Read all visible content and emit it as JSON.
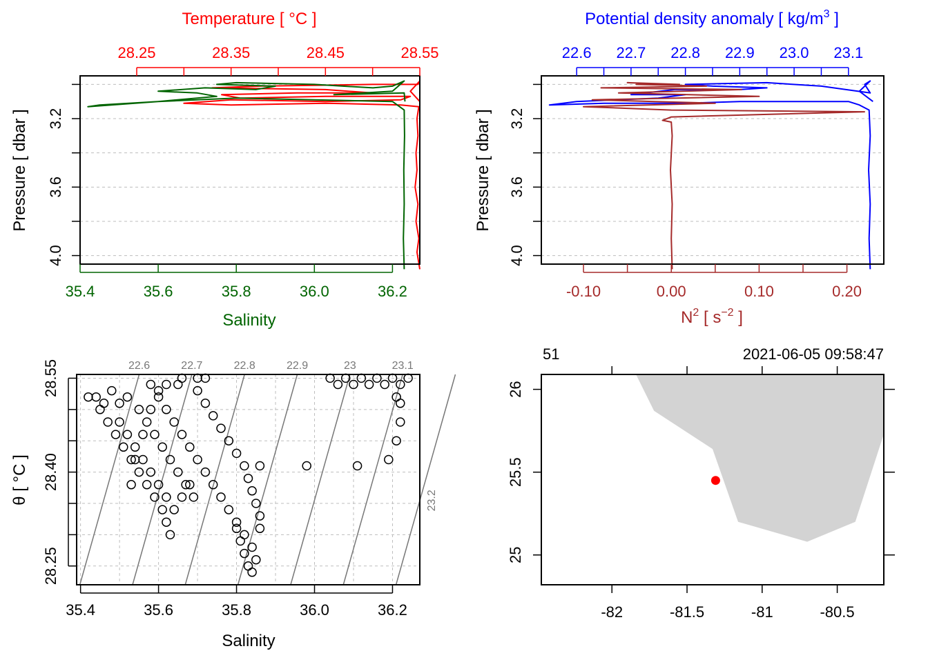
{
  "colors": {
    "temperature": "#ff0000",
    "salinity": "#006400",
    "density": "#0000ff",
    "n2": "#a52a2a",
    "land": "#d3d3d3",
    "station": "#ff0000",
    "isopycnal": "#777777"
  },
  "panel_ts_profile": {
    "top_axis_title": "Temperature [ °C ]",
    "bottom_axis_title": "Salinity",
    "left_axis_title": "Pressure [ dbar ]"
  },
  "panel_density_profile": {
    "top_axis_title": "Potential density anomaly [ kg/m",
    "top_axis_title_sup": "3",
    "top_axis_title_end": " ]",
    "bottom_axis_title": "N",
    "bottom_axis_title_sup": "2",
    "bottom_axis_title_mid": " [ s",
    "bottom_axis_title_sup2": "−2",
    "bottom_axis_title_end": " ]",
    "left_axis_title": "Pressure [ dbar ]"
  },
  "panel_ts_diagram": {
    "x_axis_title": "Salinity",
    "y_axis_title": "θ [ °C ]"
  },
  "panel_map": {
    "station_label": "51",
    "datetime": "2021-06-05 09:58:47"
  },
  "chart_data": [
    {
      "type": "line",
      "name": "ts-profile",
      "ylim": [
        4.05,
        2.95
      ],
      "yticks": [
        "3.2",
        "3.6",
        "4.0"
      ],
      "x_bottom": {
        "label": "Salinity",
        "ticks": [
          "35.4",
          "35.6",
          "35.8",
          "36.0",
          "36.2"
        ],
        "lim": [
          35.4,
          36.27
        ]
      },
      "x_top": {
        "label": "Temperature [ °C ]",
        "ticks": [
          "28.25",
          "28.35",
          "28.45",
          "28.55"
        ],
        "lim": [
          28.19,
          28.55
        ]
      },
      "grid": true,
      "series": [
        {
          "name": "Temperature",
          "axis": "x_top",
          "points": [
            [
              28.55,
              4.08
            ],
            [
              28.547,
              3.98
            ],
            [
              28.549,
              3.9
            ],
            [
              28.546,
              3.8
            ],
            [
              28.548,
              3.7
            ],
            [
              28.545,
              3.6
            ],
            [
              28.547,
              3.5
            ],
            [
              28.546,
              3.4
            ],
            [
              28.548,
              3.3
            ],
            [
              28.547,
              3.2
            ],
            [
              28.549,
              3.13
            ],
            [
              28.53,
              3.12
            ],
            [
              28.45,
              3.11
            ],
            [
              28.35,
              3.12
            ],
            [
              28.3,
              3.11
            ],
            [
              28.35,
              3.09
            ],
            [
              28.45,
              3.1
            ],
            [
              28.53,
              3.09
            ],
            [
              28.54,
              3.07
            ],
            [
              28.45,
              3.07
            ],
            [
              28.36,
              3.08
            ],
            [
              28.34,
              3.06
            ],
            [
              28.42,
              3.05
            ],
            [
              28.5,
              3.05
            ],
            [
              28.45,
              3.03
            ],
            [
              28.33,
              3.02
            ],
            [
              28.38,
              3.01
            ],
            [
              28.5,
              3.0
            ],
            [
              28.548,
              3.0
            ],
            [
              28.55,
              2.98
            ],
            [
              28.54,
              3.04
            ],
            [
              28.55,
              3.1
            ]
          ]
        },
        {
          "name": "Salinity",
          "axis": "x_bottom",
          "points": [
            [
              36.23,
              4.08
            ],
            [
              36.228,
              3.9
            ],
            [
              36.23,
              3.7
            ],
            [
              36.229,
              3.5
            ],
            [
              36.231,
              3.3
            ],
            [
              36.23,
              3.15
            ],
            [
              36.2,
              3.1
            ],
            [
              36.0,
              3.09
            ],
            [
              35.8,
              3.08
            ],
            [
              35.6,
              3.1
            ],
            [
              35.45,
              3.12
            ],
            [
              35.42,
              3.13
            ],
            [
              35.6,
              3.1
            ],
            [
              35.75,
              3.07
            ],
            [
              35.7,
              3.05
            ],
            [
              35.6,
              3.04
            ],
            [
              35.72,
              3.02
            ],
            [
              35.85,
              3.03
            ],
            [
              35.9,
              3.01
            ],
            [
              35.75,
              3.0
            ],
            [
              35.8,
              2.99
            ],
            [
              36.0,
              3.0
            ],
            [
              36.15,
              3.02
            ],
            [
              36.2,
              3.01
            ],
            [
              36.23,
              2.98
            ],
            [
              36.2,
              3.04
            ],
            [
              36.05,
              3.06
            ],
            [
              36.23,
              3.05
            ],
            [
              36.232,
              3.1
            ]
          ]
        }
      ]
    },
    {
      "type": "line",
      "name": "density-profile",
      "ylim": [
        4.05,
        2.95
      ],
      "yticks": [
        "3.2",
        "3.6",
        "4.0"
      ],
      "x_top": {
        "label": "Potential density anomaly [ kg/m3 ]",
        "ticks": [
          "22.6",
          "22.7",
          "22.8",
          "22.9",
          "23.0",
          "23.1"
        ],
        "lim": [
          22.535,
          23.165
        ]
      },
      "x_bottom": {
        "label": "N2 [ s−2 ]",
        "ticks": [
          "-0.10",
          "0.00",
          "0.10",
          "0.20"
        ],
        "lim": [
          -0.148,
          0.242
        ]
      },
      "grid": true,
      "series": [
        {
          "name": "Potential density anomaly",
          "axis": "x_top",
          "points": [
            [
              23.14,
              4.08
            ],
            [
              23.138,
              3.9
            ],
            [
              23.14,
              3.7
            ],
            [
              23.137,
              3.5
            ],
            [
              23.14,
              3.3
            ],
            [
              23.138,
              3.15
            ],
            [
              23.12,
              3.12
            ],
            [
              23.1,
              3.1
            ],
            [
              22.9,
              3.1
            ],
            [
              22.8,
              3.11
            ],
            [
              22.65,
              3.11
            ],
            [
              22.55,
              3.12
            ],
            [
              22.6,
              3.1
            ],
            [
              22.75,
              3.08
            ],
            [
              22.8,
              3.06
            ],
            [
              22.7,
              3.06
            ],
            [
              22.78,
              3.03
            ],
            [
              22.9,
              3.03
            ],
            [
              22.95,
              3.02
            ],
            [
              22.85,
              3.01
            ],
            [
              22.8,
              3.0
            ],
            [
              22.95,
              2.99
            ],
            [
              23.05,
              3.01
            ],
            [
              23.14,
              3.05
            ],
            [
              23.13,
              3.0
            ],
            [
              23.14,
              2.98
            ],
            [
              23.12,
              3.04
            ],
            [
              23.145,
              3.1
            ]
          ]
        },
        {
          "name": "N2",
          "axis": "x_bottom",
          "points": [
            [
              0.001,
              4.08
            ],
            [
              0.0,
              3.9
            ],
            [
              0.001,
              3.7
            ],
            [
              -0.001,
              3.5
            ],
            [
              0.001,
              3.3
            ],
            [
              0.0,
              3.22
            ],
            [
              -0.01,
              3.21
            ],
            [
              0.0,
              3.19
            ],
            [
              0.22,
              3.16
            ],
            [
              0.0,
              3.15
            ],
            [
              -0.1,
              3.13
            ],
            [
              0.05,
              3.11
            ],
            [
              -0.09,
              3.09
            ],
            [
              0.1,
              3.07
            ],
            [
              -0.06,
              3.05
            ],
            [
              0.08,
              3.03
            ],
            [
              -0.08,
              3.02
            ],
            [
              0.04,
              3.01
            ],
            [
              -0.04,
              3.0
            ],
            [
              0.0,
              3.0
            ],
            [
              -0.05,
              2.99
            ],
            [
              0.01,
              3.0
            ]
          ]
        }
      ]
    },
    {
      "type": "scatter",
      "name": "ts-diagram",
      "xlabel": "Salinity",
      "ylabel": "θ [ °C ]",
      "xlim": [
        35.39,
        36.27
      ],
      "ylim": [
        28.22,
        28.556
      ],
      "xticks": [
        "35.4",
        "35.6",
        "35.8",
        "36.0",
        "36.2"
      ],
      "yticks": [
        "28.25",
        "28.40",
        "28.55"
      ],
      "grid": true,
      "isopycnal_labels": [
        "22.6",
        "22.7",
        "22.8",
        "22.9",
        "23",
        "23.1",
        "23.2"
      ],
      "isopycnal_values": [
        22.6,
        22.7,
        22.8,
        22.9,
        23.0,
        23.1,
        23.2
      ],
      "points": [
        [
          35.42,
          28.52
        ],
        [
          35.44,
          28.52
        ],
        [
          35.46,
          28.51
        ],
        [
          35.48,
          28.53
        ],
        [
          35.5,
          28.51
        ],
        [
          35.52,
          28.52
        ],
        [
          35.45,
          28.5
        ],
        [
          35.47,
          28.48
        ],
        [
          35.49,
          28.46
        ],
        [
          35.51,
          28.44
        ],
        [
          35.53,
          28.42
        ],
        [
          35.55,
          28.4
        ],
        [
          35.57,
          28.38
        ],
        [
          35.59,
          28.36
        ],
        [
          35.61,
          28.34
        ],
        [
          35.62,
          28.32
        ],
        [
          35.63,
          28.3
        ],
        [
          35.5,
          28.48
        ],
        [
          35.52,
          28.46
        ],
        [
          35.54,
          28.44
        ],
        [
          35.56,
          28.42
        ],
        [
          35.58,
          28.4
        ],
        [
          35.6,
          28.38
        ],
        [
          35.62,
          28.36
        ],
        [
          35.64,
          28.34
        ],
        [
          35.66,
          28.36
        ],
        [
          35.68,
          28.38
        ],
        [
          35.55,
          28.5
        ],
        [
          35.57,
          28.48
        ],
        [
          35.59,
          28.46
        ],
        [
          35.61,
          28.44
        ],
        [
          35.63,
          28.42
        ],
        [
          35.65,
          28.4
        ],
        [
          35.67,
          28.38
        ],
        [
          35.69,
          28.36
        ],
        [
          35.6,
          28.52
        ],
        [
          35.62,
          28.5
        ],
        [
          35.64,
          28.48
        ],
        [
          35.66,
          28.46
        ],
        [
          35.68,
          28.44
        ],
        [
          35.7,
          28.42
        ],
        [
          35.72,
          28.4
        ],
        [
          35.74,
          28.38
        ],
        [
          35.76,
          28.36
        ],
        [
          35.78,
          28.34
        ],
        [
          35.8,
          28.32
        ],
        [
          35.82,
          28.3
        ],
        [
          35.84,
          28.28
        ],
        [
          35.85,
          28.26
        ],
        [
          35.7,
          28.53
        ],
        [
          35.72,
          28.51
        ],
        [
          35.74,
          28.49
        ],
        [
          35.76,
          28.47
        ],
        [
          35.78,
          28.45
        ],
        [
          35.8,
          28.43
        ],
        [
          35.82,
          28.41
        ],
        [
          35.83,
          28.39
        ],
        [
          35.84,
          28.37
        ],
        [
          35.85,
          28.35
        ],
        [
          35.86,
          28.33
        ],
        [
          35.86,
          28.31
        ],
        [
          35.8,
          28.31
        ],
        [
          35.81,
          28.29
        ],
        [
          35.82,
          28.27
        ],
        [
          35.83,
          28.25
        ],
        [
          35.84,
          28.24
        ],
        [
          35.58,
          28.54
        ],
        [
          35.62,
          28.54
        ],
        [
          35.66,
          28.55
        ],
        [
          35.7,
          28.55
        ],
        [
          35.72,
          28.55
        ],
        [
          35.65,
          28.54
        ],
        [
          35.6,
          28.53
        ],
        [
          35.58,
          28.5
        ],
        [
          35.56,
          28.46
        ],
        [
          35.54,
          28.42
        ],
        [
          35.53,
          28.38
        ],
        [
          35.86,
          28.41
        ],
        [
          35.98,
          28.41
        ],
        [
          36.11,
          28.41
        ],
        [
          36.19,
          28.42
        ],
        [
          36.21,
          28.45
        ],
        [
          36.22,
          28.48
        ],
        [
          36.22,
          28.51
        ],
        [
          36.21,
          28.52
        ],
        [
          36.08,
          28.55
        ],
        [
          36.1,
          28.54
        ],
        [
          36.12,
          28.55
        ],
        [
          36.14,
          28.54
        ],
        [
          36.16,
          28.55
        ],
        [
          36.18,
          28.54
        ],
        [
          36.2,
          28.55
        ],
        [
          36.22,
          28.54
        ],
        [
          36.24,
          28.55
        ],
        [
          36.06,
          28.54
        ],
        [
          36.04,
          28.55
        ]
      ]
    }
  ],
  "map": {
    "lon_ticks": [
      "-82",
      "-81.5",
      "-81",
      "-80.5"
    ],
    "lat_ticks": [
      "25",
      "25.5",
      "26"
    ],
    "lon_range": [
      -82.47,
      -80.19
    ],
    "lat_range": [
      24.82,
      26.09
    ],
    "station": {
      "lon": -81.31,
      "lat": 25.45
    },
    "land_polygon": [
      [
        -81.84,
        26.09
      ],
      [
        -81.72,
        25.87
      ],
      [
        -81.33,
        25.64
      ],
      [
        -81.16,
        25.2
      ],
      [
        -80.7,
        25.08
      ],
      [
        -80.38,
        25.2
      ],
      [
        -80.19,
        25.73
      ],
      [
        -80.19,
        26.09
      ]
    ]
  }
}
